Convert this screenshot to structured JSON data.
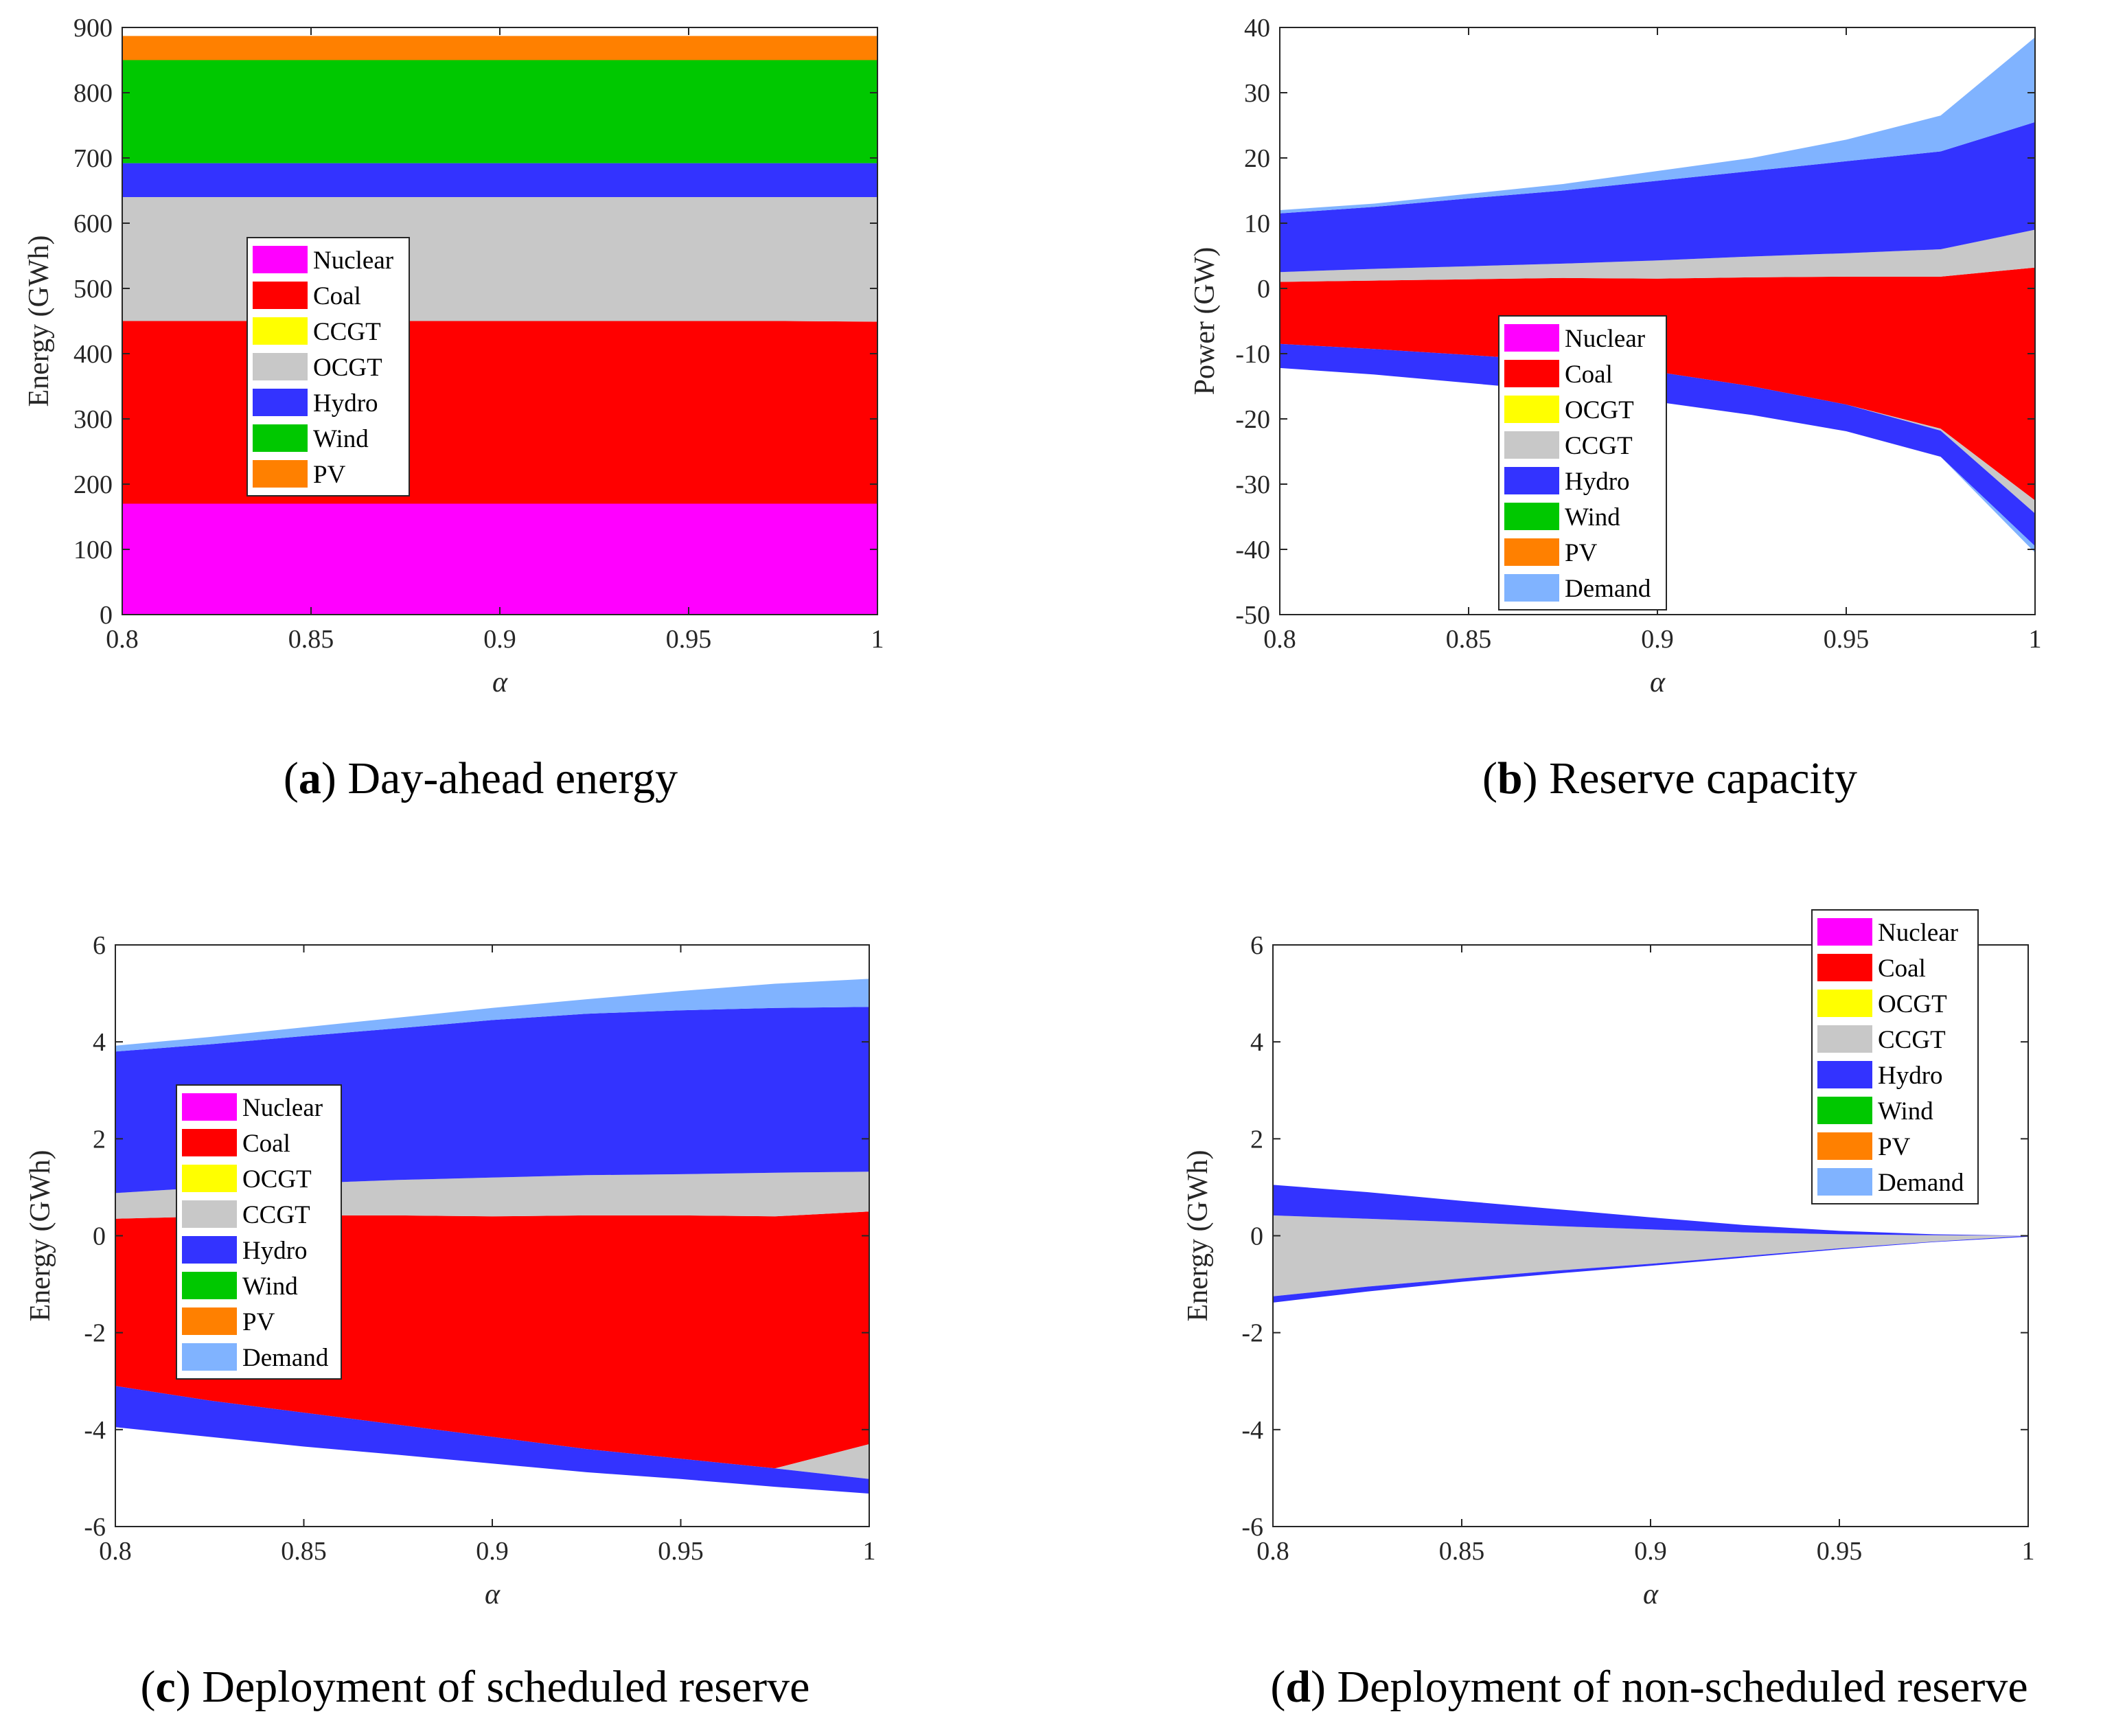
{
  "figure": {
    "panels": [
      "a",
      "b",
      "c",
      "d"
    ]
  },
  "chart_data": [
    {
      "id": "a",
      "type": "area",
      "caption_letter": "a",
      "caption_text": "Day-ahead energy",
      "caption_prefix": "(",
      "caption_suffix": ")",
      "xlabel": "α",
      "ylabel": "Energy (GWh)",
      "xlim": [
        0.8,
        1
      ],
      "ylim": [
        0,
        900
      ],
      "xticks": [
        0.8,
        0.85,
        0.9,
        0.95,
        1
      ],
      "xtick_labels": [
        "0.8",
        "0.85",
        "0.9",
        "0.95",
        "1"
      ],
      "yticks": [
        0,
        100,
        200,
        300,
        400,
        500,
        600,
        700,
        800,
        900
      ],
      "ytick_labels": [
        "0",
        "100",
        "200",
        "300",
        "400",
        "500",
        "600",
        "700",
        "800",
        "900"
      ],
      "legend_position": "center-left",
      "legend": [
        "Nuclear",
        "Coal",
        "CCGT",
        "OCGT",
        "Hydro",
        "Wind",
        "PV"
      ],
      "legend_colors": [
        "#ff00ff",
        "#ff0000",
        "#ffff00",
        "#c8c8c8",
        "#3333ff",
        "#00c800",
        "#ff8000"
      ],
      "x": [
        0.8,
        0.825,
        0.85,
        0.875,
        0.9,
        0.925,
        0.95,
        0.975,
        1
      ],
      "bands": [
        {
          "name": "Nuclear",
          "color": "#ff00ff",
          "low": [
            0,
            0,
            0,
            0,
            0,
            0,
            0,
            0,
            0
          ],
          "high": [
            170,
            170,
            170,
            170,
            170,
            170,
            170,
            170,
            170
          ]
        },
        {
          "name": "Coal",
          "color": "#ff0000",
          "low": [
            170,
            170,
            170,
            170,
            170,
            170,
            170,
            170,
            170
          ],
          "high": [
            450,
            450,
            450,
            450,
            450,
            450,
            450,
            450,
            449
          ]
        },
        {
          "name": "OCGT",
          "color": "#c8c8c8",
          "low": [
            450,
            450,
            450,
            450,
            450,
            450,
            450,
            450,
            449
          ],
          "high": [
            640,
            640,
            640,
            640,
            640,
            640,
            640,
            640,
            640
          ]
        },
        {
          "name": "Hydro",
          "color": "#3333ff",
          "low": [
            640,
            640,
            640,
            640,
            640,
            640,
            640,
            640,
            640
          ],
          "high": [
            692,
            692,
            692,
            692,
            692,
            692,
            692,
            692,
            692
          ]
        },
        {
          "name": "Wind",
          "color": "#00c800",
          "low": [
            692,
            692,
            692,
            692,
            692,
            692,
            692,
            692,
            692
          ],
          "high": [
            850,
            850,
            850,
            850,
            850,
            850,
            850,
            850,
            850
          ]
        },
        {
          "name": "PV",
          "color": "#ff8000",
          "low": [
            850,
            850,
            850,
            850,
            850,
            850,
            850,
            850,
            850
          ],
          "high": [
            887,
            887,
            887,
            887,
            887,
            887,
            887,
            887,
            887
          ]
        }
      ]
    },
    {
      "id": "b",
      "type": "area",
      "caption_letter": "b",
      "caption_text": "Reserve capacity",
      "caption_prefix": "(",
      "caption_suffix": ")",
      "xlabel": "α",
      "ylabel": "Power (GW)",
      "xlim": [
        0.8,
        1
      ],
      "ylim": [
        -50,
        40
      ],
      "xticks": [
        0.8,
        0.85,
        0.9,
        0.95,
        1
      ],
      "xtick_labels": [
        "0.8",
        "0.85",
        "0.9",
        "0.95",
        "1"
      ],
      "yticks": [
        -50,
        -40,
        -30,
        -20,
        -10,
        0,
        10,
        20,
        30,
        40
      ],
      "ytick_labels": [
        "-50",
        "-40",
        "-30",
        "-20",
        "-10",
        "0",
        "10",
        "20",
        "30",
        "40"
      ],
      "legend_position": "lower-center",
      "legend": [
        "Nuclear",
        "Coal",
        "OCGT",
        "CCGT",
        "Hydro",
        "Wind",
        "PV",
        "Demand"
      ],
      "legend_colors": [
        "#ff00ff",
        "#ff0000",
        "#ffff00",
        "#c8c8c8",
        "#3333ff",
        "#00c800",
        "#ff8000",
        "#80b3ff"
      ],
      "x": [
        0.8,
        0.825,
        0.85,
        0.875,
        0.9,
        0.925,
        0.95,
        0.975,
        1
      ],
      "bands": [
        {
          "name": "Coal",
          "color": "#ff0000",
          "low": [
            -8.5,
            -9.3,
            -10.2,
            -11.2,
            -12.8,
            -15,
            -17.8,
            -21.5,
            -32.5
          ],
          "high": [
            1.0,
            1.2,
            1.4,
            1.6,
            1.5,
            1.7,
            1.8,
            1.8,
            3.2
          ]
        },
        {
          "name": "CCGT+",
          "color": "#c8c8c8",
          "low": [
            1.0,
            1.2,
            1.4,
            1.6,
            1.5,
            1.7,
            1.8,
            1.8,
            3.2
          ],
          "high": [
            2.5,
            3.0,
            3.4,
            3.8,
            4.3,
            4.9,
            5.4,
            6.0,
            9.0
          ]
        },
        {
          "name": "Hydro+",
          "color": "#3333ff",
          "low": [
            2.5,
            3.0,
            3.4,
            3.8,
            4.3,
            4.9,
            5.4,
            6.0,
            9.0
          ],
          "high": [
            11.5,
            12.5,
            13.8,
            15.0,
            16.5,
            18.0,
            19.5,
            21.0,
            25.5
          ]
        },
        {
          "name": "Demand+",
          "color": "#80b3ff",
          "low": [
            11.5,
            12.5,
            13.8,
            15.0,
            16.5,
            18.0,
            19.5,
            21.0,
            25.5
          ],
          "high": [
            12.0,
            13.0,
            14.5,
            16.0,
            18.0,
            20.0,
            22.8,
            26.5,
            38.5
          ]
        },
        {
          "name": "CCGT-",
          "color": "#c8c8c8",
          "low": [
            -8.5,
            -9.3,
            -10.2,
            -11.2,
            -12.8,
            -15,
            -17.8,
            -21.8,
            -34.5
          ],
          "high": [
            -8.5,
            -9.3,
            -10.2,
            -11.2,
            -12.8,
            -15,
            -17.8,
            -21.5,
            -32.5
          ]
        },
        {
          "name": "Hydro-",
          "color": "#3333ff",
          "low": [
            -12.2,
            -13.2,
            -14.5,
            -15.8,
            -17.4,
            -19.4,
            -21.9,
            -25.8,
            -39.5
          ],
          "high": [
            -8.5,
            -9.3,
            -10.2,
            -11.2,
            -12.8,
            -15,
            -17.8,
            -21.8,
            -34.5
          ]
        },
        {
          "name": "Demand-",
          "color": "#80b3ff",
          "low": [
            -12.2,
            -13.2,
            -14.5,
            -15.8,
            -17.4,
            -19.4,
            -21.9,
            -25.8,
            -40.5
          ],
          "high": [
            -12.2,
            -13.2,
            -14.5,
            -15.8,
            -17.4,
            -19.4,
            -21.9,
            -25.8,
            -39.5
          ]
        }
      ]
    },
    {
      "id": "c",
      "type": "area",
      "caption_letter": "c",
      "caption_text": "Deployment of scheduled reserve",
      "caption_prefix": "(",
      "caption_suffix": ")",
      "xlabel": "α",
      "ylabel": "Energy (GWh)",
      "xlim": [
        0.8,
        1
      ],
      "ylim": [
        -6,
        6
      ],
      "xticks": [
        0.8,
        0.85,
        0.9,
        0.95,
        1
      ],
      "xtick_labels": [
        "0.8",
        "0.85",
        "0.9",
        "0.95",
        "1"
      ],
      "yticks": [
        -6,
        -4,
        -2,
        0,
        2,
        4,
        6
      ],
      "ytick_labels": [
        "-6",
        "-4",
        "-2",
        "0",
        "2",
        "4",
        "6"
      ],
      "legend_position": "center-left",
      "legend": [
        "Nuclear",
        "Coal",
        "OCGT",
        "CCGT",
        "Hydro",
        "Wind",
        "PV",
        "Demand"
      ],
      "legend_colors": [
        "#ff00ff",
        "#ff0000",
        "#ffff00",
        "#c8c8c8",
        "#3333ff",
        "#00c800",
        "#ff8000",
        "#80b3ff"
      ],
      "x": [
        0.8,
        0.825,
        0.85,
        0.875,
        0.9,
        0.925,
        0.95,
        0.975,
        1
      ],
      "bands": [
        {
          "name": "Coal",
          "color": "#ff0000",
          "low": [
            -3.1,
            -3.4,
            -3.65,
            -3.9,
            -4.15,
            -4.4,
            -4.6,
            -4.8,
            -4.3
          ],
          "high": [
            0.35,
            0.4,
            0.42,
            0.42,
            0.4,
            0.42,
            0.42,
            0.4,
            0.5
          ]
        },
        {
          "name": "CCGT+",
          "color": "#c8c8c8",
          "low": [
            0.35,
            0.4,
            0.42,
            0.42,
            0.4,
            0.42,
            0.42,
            0.4,
            0.5
          ],
          "high": [
            0.88,
            1.0,
            1.08,
            1.15,
            1.2,
            1.25,
            1.27,
            1.3,
            1.32
          ]
        },
        {
          "name": "Hydro+",
          "color": "#3333ff",
          "low": [
            0.88,
            1.0,
            1.08,
            1.15,
            1.2,
            1.25,
            1.27,
            1.3,
            1.32
          ],
          "high": [
            3.8,
            3.95,
            4.12,
            4.28,
            4.45,
            4.58,
            4.65,
            4.7,
            4.72
          ]
        },
        {
          "name": "Demand+",
          "color": "#80b3ff",
          "low": [
            3.8,
            3.95,
            4.12,
            4.28,
            4.45,
            4.58,
            4.65,
            4.7,
            4.72
          ],
          "high": [
            3.92,
            4.1,
            4.3,
            4.5,
            4.7,
            4.88,
            5.05,
            5.2,
            5.3
          ]
        },
        {
          "name": "CCGT-",
          "color": "#c8c8c8",
          "low": [
            -3.1,
            -3.4,
            -3.65,
            -3.9,
            -4.15,
            -4.4,
            -4.6,
            -4.8,
            -5.02
          ],
          "high": [
            -3.1,
            -3.4,
            -3.65,
            -3.9,
            -4.15,
            -4.4,
            -4.6,
            -4.8,
            -4.3
          ]
        },
        {
          "name": "Hydro-",
          "color": "#3333ff",
          "low": [
            -3.95,
            -4.15,
            -4.35,
            -4.52,
            -4.7,
            -4.88,
            -5.02,
            -5.18,
            -5.32
          ],
          "high": [
            -3.1,
            -3.4,
            -3.65,
            -3.9,
            -4.15,
            -4.4,
            -4.6,
            -4.8,
            -5.02
          ]
        }
      ]
    },
    {
      "id": "d",
      "type": "area",
      "caption_letter": "d",
      "caption_text": "Deployment of non-scheduled reserve",
      "caption_prefix": "(",
      "caption_suffix": ")",
      "xlabel": "α",
      "ylabel": "Energy (GWh)",
      "xlim": [
        0.8,
        1
      ],
      "ylim": [
        -6,
        6
      ],
      "xticks": [
        0.8,
        0.85,
        0.9,
        0.95,
        1
      ],
      "xtick_labels": [
        "0.8",
        "0.85",
        "0.9",
        "0.95",
        "1"
      ],
      "yticks": [
        -6,
        -4,
        -2,
        0,
        2,
        4,
        6
      ],
      "ytick_labels": [
        "-6",
        "-4",
        "-2",
        "0",
        "2",
        "4",
        "6"
      ],
      "legend_position": "top-right",
      "legend": [
        "Nuclear",
        "Coal",
        "OCGT",
        "CCGT",
        "Hydro",
        "Wind",
        "PV",
        "Demand"
      ],
      "legend_colors": [
        "#ff00ff",
        "#ff0000",
        "#ffff00",
        "#c8c8c8",
        "#3333ff",
        "#00c800",
        "#ff8000",
        "#80b3ff"
      ],
      "x": [
        0.8,
        0.825,
        0.85,
        0.875,
        0.9,
        0.925,
        0.95,
        0.975,
        1
      ],
      "bands": [
        {
          "name": "CCGT",
          "color": "#c8c8c8",
          "low": [
            -1.25,
            -1.05,
            -0.88,
            -0.72,
            -0.58,
            -0.42,
            -0.26,
            -0.12,
            0
          ],
          "high": [
            0.42,
            0.35,
            0.28,
            0.2,
            0.13,
            0.07,
            0.03,
            0.01,
            0
          ]
        },
        {
          "name": "Hydro+",
          "color": "#3333ff",
          "low": [
            0.42,
            0.35,
            0.28,
            0.2,
            0.13,
            0.07,
            0.03,
            0.01,
            0
          ],
          "high": [
            1.05,
            0.9,
            0.72,
            0.55,
            0.38,
            0.22,
            0.1,
            0.03,
            0
          ]
        },
        {
          "name": "Hydro-",
          "color": "#3333ff",
          "low": [
            -1.38,
            -1.15,
            -0.95,
            -0.78,
            -0.62,
            -0.45,
            -0.28,
            -0.13,
            -0.02
          ],
          "high": [
            -1.25,
            -1.05,
            -0.88,
            -0.72,
            -0.58,
            -0.42,
            -0.26,
            -0.12,
            0
          ]
        }
      ]
    }
  ]
}
